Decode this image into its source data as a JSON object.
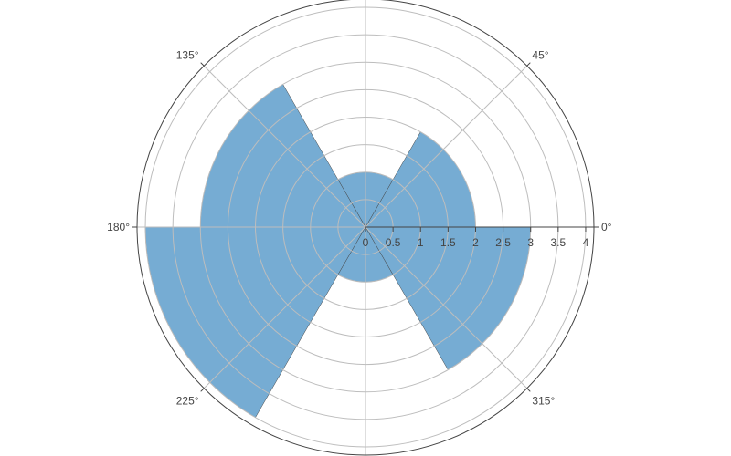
{
  "chart_data": {
    "type": "barpolar",
    "title": "",
    "radial_axis": {
      "range": [
        0,
        4.15
      ],
      "tick_values": [
        0,
        0.5,
        1,
        1.5,
        2,
        2.5,
        3,
        3.5,
        4
      ],
      "tick_labels": [
        "0",
        "0.5",
        "1",
        "1.5",
        "2",
        "2.5",
        "3",
        "3.5",
        "4"
      ]
    },
    "angular_axis": {
      "tick_values_deg": [
        0,
        45,
        135,
        180,
        225,
        315
      ],
      "tick_labels": [
        "0°",
        "45°",
        "135°",
        "180°",
        "225°",
        "315°"
      ],
      "gridlines_deg": [
        0,
        45,
        90,
        135,
        180,
        225,
        270,
        315
      ]
    },
    "grid": true,
    "series": [
      {
        "bars": [
          {
            "theta_start": 0,
            "theta_end": 60,
            "r": 2
          },
          {
            "theta_start": 60,
            "theta_end": 120,
            "r": 1
          },
          {
            "theta_start": 120,
            "theta_end": 180,
            "r": 3
          },
          {
            "theta_start": 180,
            "theta_end": 240,
            "r": 4
          },
          {
            "theta_start": 240,
            "theta_end": 300,
            "r": 1
          },
          {
            "theta_start": 300,
            "theta_end": 360,
            "r": 3
          }
        ]
      }
    ],
    "colors": {
      "bar_fill": "#76acd3",
      "bar_stroke": "#444444",
      "grid": "#bdbdbd",
      "axis_line": "#444444",
      "outer_circle": "#444444",
      "text": "#444444"
    }
  }
}
